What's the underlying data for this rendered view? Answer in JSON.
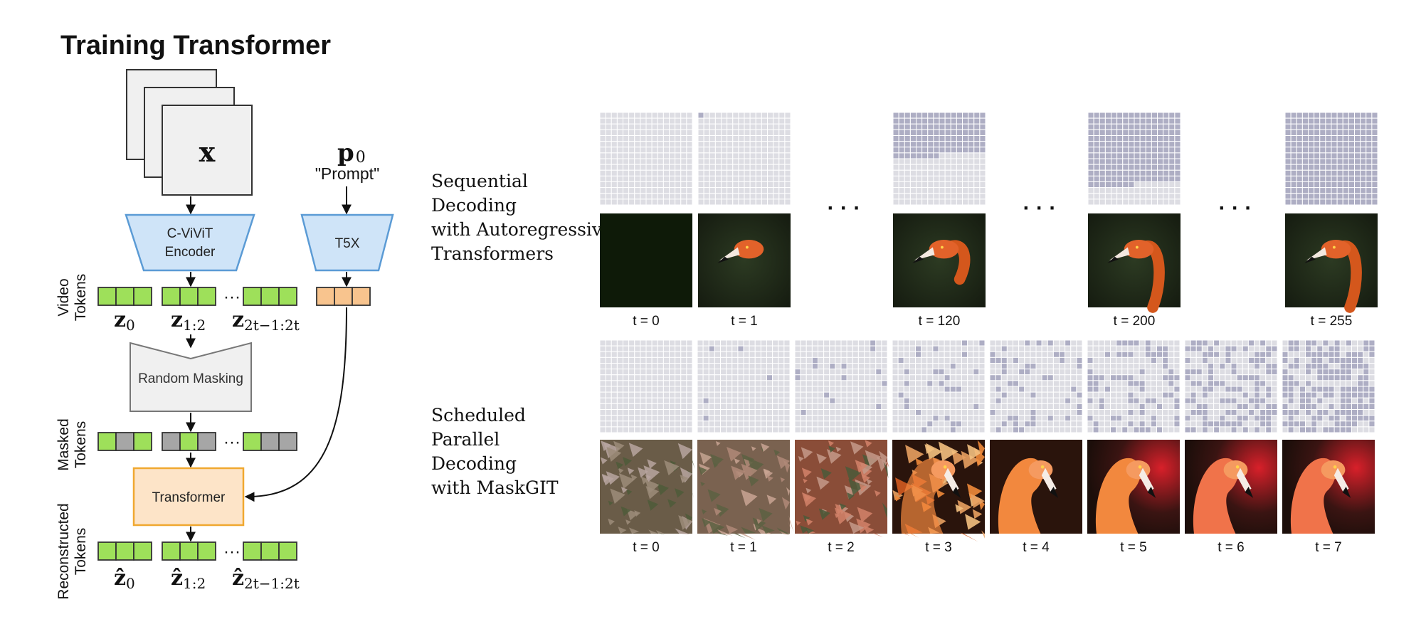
{
  "left": {
    "title": "Training Transformer",
    "input_symbol": "x",
    "prompt_symbol": "p",
    "prompt_subscript": "0",
    "prompt_label": "\"Prompt\"",
    "encoder_label_1": "C-ViViT",
    "encoder_label_2": "Encoder",
    "t5x_label": "T5X",
    "masking_label": "Random Masking",
    "transformer_label": "Transformer",
    "ellipsis": "···",
    "side_labels": {
      "video_1": "Video",
      "video_2": "Tokens",
      "masked_1": "Masked",
      "masked_2": "Tokens",
      "recon_1": "Reconstructed",
      "recon_2": "Tokens"
    },
    "token_labels": {
      "z": "z",
      "z_hat": "ẑ",
      "sub_0": "0",
      "sub_1": "1:2",
      "sub_2": "2t−1:2t"
    },
    "colors": {
      "token_green": "#9ee05a",
      "token_gray": "#a6a6a6",
      "token_orange": "#f8c48e",
      "encoder_fill": "#cfe4f8",
      "encoder_stroke": "#5b9bd5",
      "transformer_fill": "#fde4c8",
      "transformer_stroke": "#f0a830",
      "masking_fill": "#f0f0f0"
    }
  },
  "right": {
    "sequential_label": [
      "Sequential",
      "Decoding",
      "with Autoregressive",
      "Transformers"
    ],
    "parallel_label": [
      "Scheduled",
      "Parallel",
      "Decoding",
      "with MaskGIT"
    ],
    "sequential_steps": [
      {
        "label": "t = 0",
        "filled_fraction": 0.0
      },
      {
        "label": "t = 1",
        "filled_fraction": 0.004
      },
      {
        "label": "t = 120",
        "filled_fraction": 0.47
      },
      {
        "label": "t = 200",
        "filled_fraction": 0.78
      },
      {
        "label": "t = 255",
        "filled_fraction": 1.0
      }
    ],
    "parallel_steps": [
      {
        "label": "t = 0",
        "filled_fraction": 0.0
      },
      {
        "label": "t = 1",
        "filled_fraction": 0.02
      },
      {
        "label": "t = 2",
        "filled_fraction": 0.06
      },
      {
        "label": "t = 3",
        "filled_fraction": 0.12
      },
      {
        "label": "t = 4",
        "filled_fraction": 0.2
      },
      {
        "label": "t = 5",
        "filled_fraction": 0.3
      },
      {
        "label": "t = 6",
        "filled_fraction": 0.45
      },
      {
        "label": "t = 7",
        "filled_fraction": 0.62
      }
    ],
    "ellipsis": "· · ·",
    "colors": {
      "grid_empty": "#dddde3",
      "grid_filled": "#aeaec4",
      "grid_line": "#ffffff"
    }
  }
}
